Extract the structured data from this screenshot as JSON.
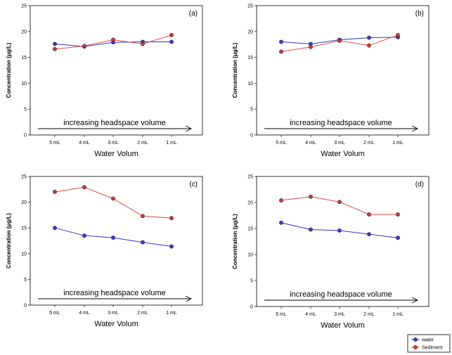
{
  "colors": {
    "water": "#2f35c8",
    "sediment": "#e04848",
    "water_fill": "#3a3ad0",
    "sediment_fill": "#d03838",
    "axis": "#000000"
  },
  "legend": {
    "items": [
      {
        "label": "water",
        "series": "water"
      },
      {
        "label": "Sediment",
        "series": "sediment"
      }
    ]
  },
  "chart_data": [
    {
      "type": "line",
      "panel_label": "(a)",
      "ylabel": "Concentration (μg/L)",
      "xlabel": "Water Volum",
      "categories": [
        "5 mL",
        "4 mL",
        "3 mL",
        "2 mL",
        "1 mL"
      ],
      "ylim": [
        0,
        25
      ],
      "yticks": [
        "0",
        "5",
        "10",
        "15",
        "20",
        "25"
      ],
      "annotation": "increasing headspace volume",
      "series": [
        {
          "name": "water",
          "values": [
            17.6,
            17.1,
            17.9,
            18.0,
            18.0
          ]
        },
        {
          "name": "Sediment",
          "values": [
            16.6,
            17.2,
            18.4,
            17.6,
            19.3
          ]
        }
      ]
    },
    {
      "type": "line",
      "panel_label": "(b)",
      "ylabel": "Concentration (μg/L)",
      "xlabel": "Water Volum",
      "categories": [
        "5 mL",
        "4 mL",
        "3 mL",
        "2 mL",
        "1 mL"
      ],
      "ylim": [
        0,
        25
      ],
      "yticks": [
        "0",
        "5",
        "10",
        "15",
        "20",
        "25"
      ],
      "annotation": "increasing headspace volume",
      "series": [
        {
          "name": "water",
          "values": [
            18.0,
            17.6,
            18.4,
            18.8,
            18.9
          ]
        },
        {
          "name": "Sediment",
          "values": [
            16.1,
            17.0,
            18.2,
            17.3,
            19.3
          ]
        }
      ]
    },
    {
      "type": "line",
      "panel_label": "(c)",
      "ylabel": "Concentration (μg/L)",
      "xlabel": "Water Volum",
      "categories": [
        "5 mL",
        "4 mL",
        "3 mL",
        "2 mL",
        "1 mL"
      ],
      "ylim": [
        0,
        25
      ],
      "yticks": [
        "0",
        "5",
        "10",
        "15",
        "20",
        "25"
      ],
      "annotation": "increasing headspace volume",
      "series": [
        {
          "name": "water",
          "values": [
            15.0,
            13.5,
            13.1,
            12.2,
            11.4
          ]
        },
        {
          "name": "Sediment",
          "values": [
            22.0,
            22.9,
            20.7,
            17.3,
            16.9
          ]
        }
      ]
    },
    {
      "type": "line",
      "panel_label": "(d)",
      "ylabel": "Concentration (μg/L)",
      "xlabel": "Water Volum",
      "categories": [
        "5 mL",
        "4 mL",
        "3 mL",
        "2 mL",
        "1 mL"
      ],
      "ylim": [
        0,
        25
      ],
      "yticks": [
        "0",
        "5",
        "10",
        "15",
        "20",
        "25"
      ],
      "annotation": "increasing headspace volume",
      "series": [
        {
          "name": "water",
          "values": [
            16.1,
            14.8,
            14.6,
            13.9,
            13.2
          ]
        },
        {
          "name": "Sediment",
          "values": [
            20.4,
            21.1,
            20.1,
            17.7,
            17.7
          ]
        }
      ]
    }
  ]
}
